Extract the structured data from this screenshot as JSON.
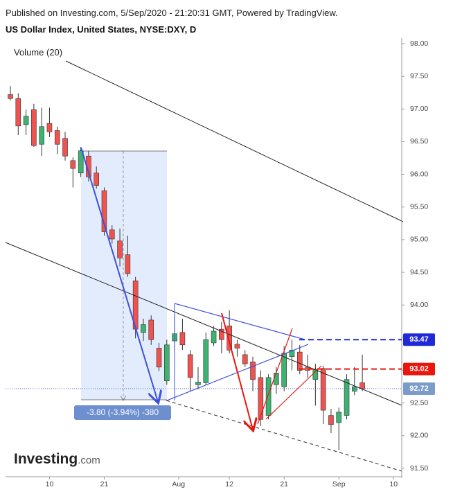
{
  "header": {
    "published": "Published on Investing.com, 5/Sep/2020 - 21:20:31 GMT, Powered by TradingView.",
    "title": "US Dollar Index, United States, NYSE:DXY, D"
  },
  "logo": {
    "brand": "Investing",
    "suffix": ".com"
  },
  "chart_data": {
    "type": "candlestick",
    "volume_label": "Volume (20)",
    "up_color": "#3cb371",
    "down_color": "#ef5350",
    "open": [
      97.22,
      97.16,
      96.76,
      96.99,
      96.46,
      96.78,
      96.67,
      96.55,
      96.21,
      96.02,
      96.28,
      96.02,
      95.75,
      95.15,
      94.98,
      94.77,
      94.37,
      93.58,
      93.77,
      93.34,
      92.84,
      93.45,
      93.58,
      93.24,
      92.78,
      92.81,
      93.42,
      93.63,
      93.68,
      93.4,
      93.24,
      93.13,
      92.89,
      92.31,
      92.78,
      92.75,
      93.21,
      93.28,
      93.05,
      92.86,
      93.03,
      92.31,
      92.2,
      92.31,
      92.68,
      92.81
    ],
    "high": [
      97.35,
      97.24,
      96.99,
      97.08,
      97.02,
      97.02,
      96.73,
      96.65,
      96.26,
      96.42,
      96.36,
      96.12,
      95.8,
      95.22,
      95.17,
      95.06,
      94.43,
      93.79,
      93.84,
      93.42,
      93.47,
      93.84,
      93.79,
      93.31,
      93.05,
      93.58,
      93.68,
      93.74,
      93.92,
      93.47,
      93.31,
      93.21,
      93.0,
      92.94,
      93.05,
      93.37,
      93.47,
      93.39,
      93.24,
      93.1,
      93.07,
      92.41,
      92.43,
      92.94,
      93.05,
      93.24
    ],
    "low": [
      97.13,
      96.6,
      96.6,
      96.42,
      96.28,
      96.57,
      96.31,
      96.21,
      95.8,
      95.96,
      95.89,
      95.78,
      95.06,
      94.94,
      94.59,
      94.43,
      93.49,
      93.45,
      93.39,
      92.99,
      92.78,
      93.31,
      93.31,
      92.68,
      92.71,
      92.78,
      93.37,
      93.26,
      93.26,
      93.21,
      93.05,
      92.68,
      92.15,
      92.25,
      92.64,
      92.68,
      93.0,
      92.94,
      92.89,
      92.46,
      92.18,
      92.04,
      91.78,
      92.25,
      92.62,
      92.68
    ],
    "close": [
      97.16,
      96.74,
      96.89,
      96.44,
      96.73,
      96.65,
      96.46,
      96.28,
      96.09,
      96.36,
      95.96,
      95.83,
      95.12,
      95.01,
      94.72,
      94.48,
      93.63,
      93.7,
      93.47,
      93.05,
      93.39,
      93.56,
      93.39,
      92.89,
      92.82,
      93.47,
      93.6,
      93.47,
      93.31,
      93.34,
      93.1,
      92.86,
      92.25,
      92.89,
      92.96,
      93.26,
      93.31,
      93.0,
      93.0,
      93.02,
      92.39,
      92.17,
      92.36,
      92.86,
      92.75,
      92.72
    ],
    "xlim": [
      -0.62,
      50.04
    ],
    "xticks": [
      {
        "value": 5,
        "label": "10"
      },
      {
        "value": 12,
        "label": "21"
      },
      {
        "value": 21.5,
        "label": "Aug"
      },
      {
        "value": 28,
        "label": "12"
      },
      {
        "value": 35,
        "label": "21"
      },
      {
        "value": 42,
        "label": "Sep"
      },
      {
        "value": 49,
        "label": "10"
      }
    ],
    "ylim": [
      91.5,
      98.0
    ],
    "yticks": [
      {
        "value": 91.5,
        "label": "91.50"
      },
      {
        "value": 92,
        "label": "92.00"
      },
      {
        "value": 92.5,
        "label": "92.50"
      },
      {
        "value": 93,
        "label": "93.00"
      },
      {
        "value": 93.5,
        "label": "93.50"
      },
      {
        "value": 94,
        "label": "94.00"
      },
      {
        "value": 94.5,
        "label": "94.50"
      },
      {
        "value": 95,
        "label": "95.00"
      },
      {
        "value": 95.5,
        "label": "95.50"
      },
      {
        "value": 96,
        "label": "96.00"
      },
      {
        "value": 96.5,
        "label": "96.50"
      },
      {
        "value": 97,
        "label": "97.00"
      },
      {
        "value": 97.5,
        "label": "97.50"
      },
      {
        "value": 98,
        "label": "98.00"
      }
    ],
    "price_labels": [
      {
        "value": 93.47,
        "color": "#1f2ad6",
        "dashed": true
      },
      {
        "value": 93.02,
        "color": "#e8160c",
        "dashed": true
      },
      {
        "value": 92.72,
        "color": "#7b9bc9",
        "dashed": false
      }
    ],
    "measure_label": "-3.80 (-3.94%) -380"
  }
}
